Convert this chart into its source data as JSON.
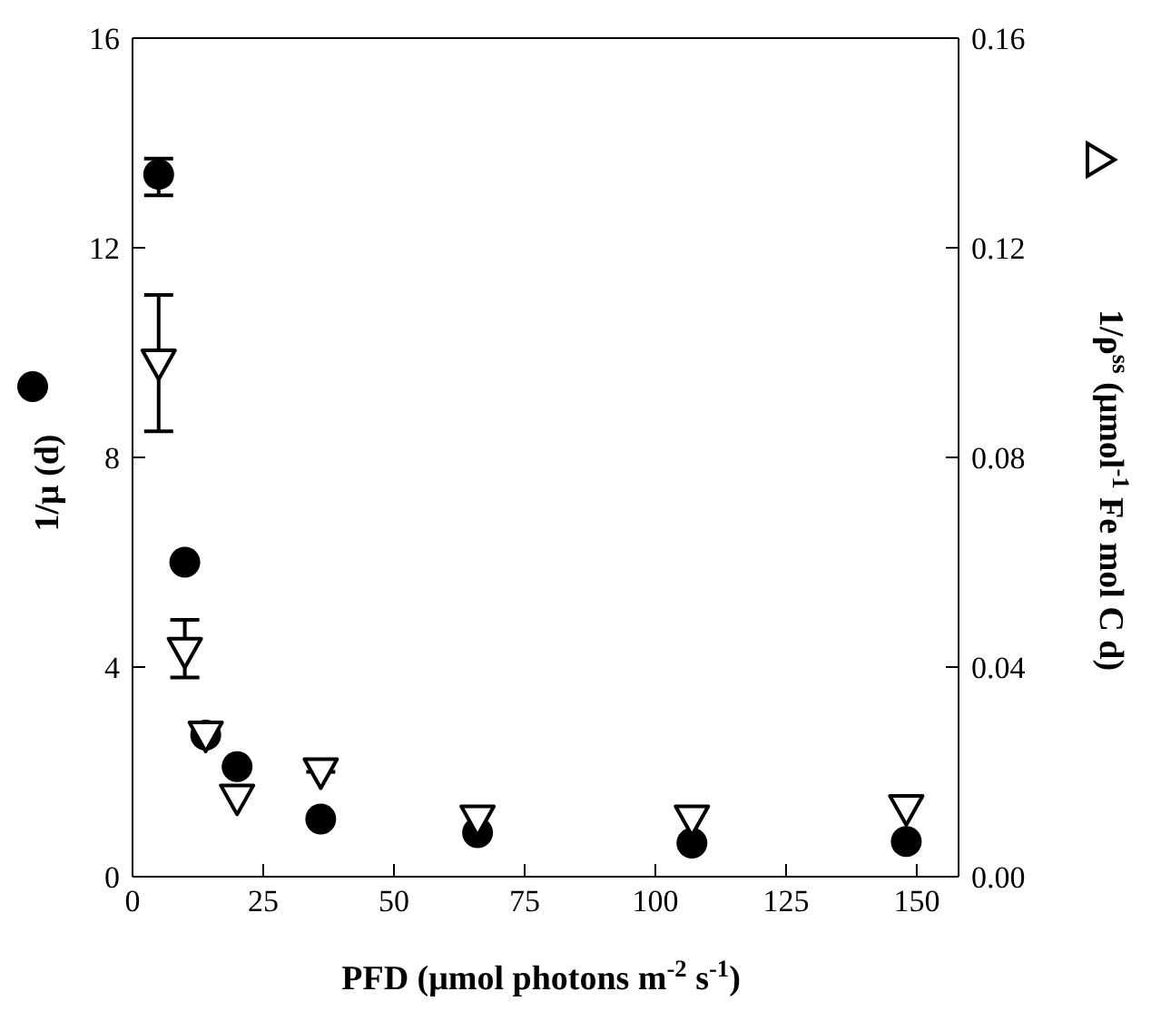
{
  "chart_data": {
    "type": "scatter",
    "xlabel": "PFD (μmol photons m$^{-2}$ s$^{-1}$)",
    "ylabel": "1/μ (d)",
    "y2label": "1/ρ$^{ss}$ (μmol$^{-1}$ Fe mol C d)",
    "xlim": [
      0,
      158
    ],
    "xticks": [
      0,
      25,
      50,
      75,
      100,
      125,
      150
    ],
    "ylim": [
      0,
      16
    ],
    "yticks": [
      0,
      4,
      8,
      12,
      16
    ],
    "y2lim": [
      0,
      0.16
    ],
    "y2ticks": [
      {
        "value": 0,
        "label": "0.00"
      },
      0.04,
      0.08,
      0.12,
      0.16
    ],
    "x": [
      5,
      10,
      14,
      20,
      36,
      66,
      107,
      148
    ],
    "series": [
      {
        "color": "#000000",
        "marker": "circle",
        "values": [
          13.4,
          6.0,
          2.7,
          2.1,
          1.1,
          0.84,
          0.64,
          0.67
        ],
        "errors": [
          [
            13.0,
            13.7
          ],
          null,
          null,
          null,
          null,
          null,
          null,
          null
        ]
      },
      {
        "color": "#000000",
        "marker": "triangle",
        "axis": "y2",
        "values": [
          0.098,
          0.043,
          0.027,
          0.015,
          0.02,
          0.011,
          0.011,
          0.013
        ],
        "errors": [
          [
            0.085,
            0.111
          ],
          [
            0.038,
            0.049
          ],
          null,
          null,
          [
            0.02,
            0.022
          ],
          null,
          null,
          null
        ]
      }
    ]
  }
}
